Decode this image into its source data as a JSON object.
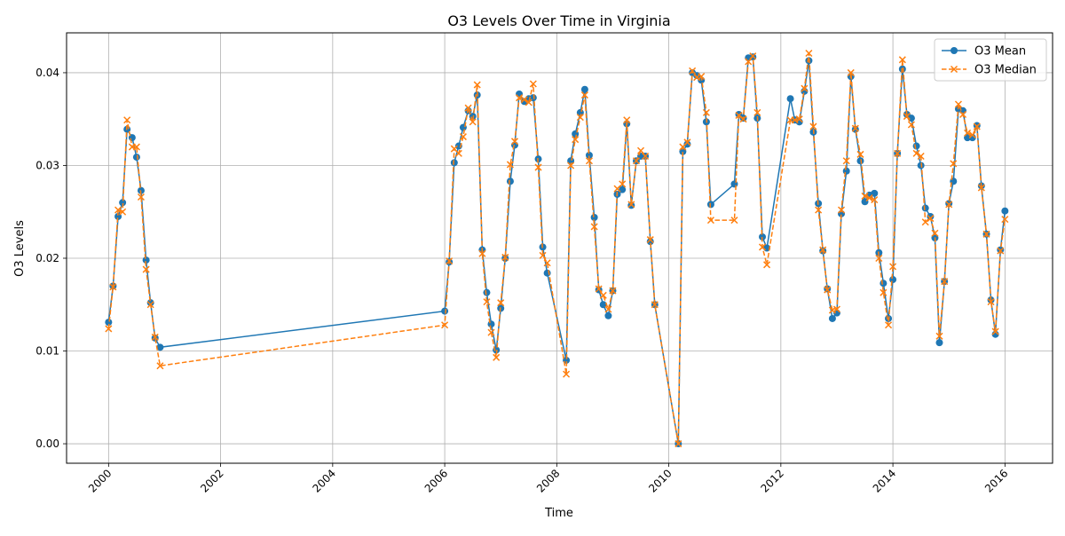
{
  "chart_data": {
    "type": "line",
    "title": "O3 Levels Over Time in Virginia",
    "xlabel": "Time",
    "ylabel": "O3 Levels",
    "xlim": [
      1999.25,
      2016.85
    ],
    "ylim": [
      -0.0021,
      0.0443
    ],
    "x_ticks": [
      2000,
      2002,
      2004,
      2006,
      2008,
      2010,
      2012,
      2014,
      2016
    ],
    "x_tick_labels": [
      "2000",
      "2002",
      "2004",
      "2006",
      "2008",
      "2010",
      "2012",
      "2014",
      "2016"
    ],
    "y_ticks": [
      0.0,
      0.01,
      0.02,
      0.03,
      0.04
    ],
    "y_tick_labels": [
      "0.00",
      "0.01",
      "0.02",
      "0.03",
      "0.04"
    ],
    "grid": true,
    "legend_position": "top-right",
    "series": [
      {
        "name": "O3 Mean",
        "color": "#1f77b4",
        "line_style": "solid",
        "marker": "circle",
        "points": [
          [
            2000.0,
            0.0131
          ],
          [
            2000.08,
            0.017
          ],
          [
            2000.17,
            0.0245
          ],
          [
            2000.25,
            0.026
          ],
          [
            2000.33,
            0.0339
          ],
          [
            2000.42,
            0.033
          ],
          [
            2000.5,
            0.0309
          ],
          [
            2000.58,
            0.0273
          ],
          [
            2000.67,
            0.0198
          ],
          [
            2000.75,
            0.0152
          ],
          [
            2000.83,
            0.0114
          ],
          [
            2000.92,
            0.0104
          ],
          [
            2006.0,
            0.0143
          ],
          [
            2006.08,
            0.0196
          ],
          [
            2006.17,
            0.0303
          ],
          [
            2006.25,
            0.0321
          ],
          [
            2006.33,
            0.0341
          ],
          [
            2006.42,
            0.0359
          ],
          [
            2006.5,
            0.0353
          ],
          [
            2006.58,
            0.0376
          ],
          [
            2006.67,
            0.0209
          ],
          [
            2006.75,
            0.0163
          ],
          [
            2006.83,
            0.0129
          ],
          [
            2006.92,
            0.0101
          ],
          [
            2007.0,
            0.0146
          ],
          [
            2007.08,
            0.02
          ],
          [
            2007.17,
            0.0283
          ],
          [
            2007.25,
            0.0322
          ],
          [
            2007.33,
            0.0377
          ],
          [
            2007.42,
            0.0369
          ],
          [
            2007.5,
            0.0372
          ],
          [
            2007.58,
            0.0373
          ],
          [
            2007.67,
            0.0307
          ],
          [
            2007.75,
            0.0212
          ],
          [
            2007.83,
            0.0184
          ],
          [
            2008.17,
            0.009
          ],
          [
            2008.25,
            0.0305
          ],
          [
            2008.33,
            0.0334
          ],
          [
            2008.42,
            0.0357
          ],
          [
            2008.5,
            0.0382
          ],
          [
            2008.58,
            0.0311
          ],
          [
            2008.67,
            0.0244
          ],
          [
            2008.75,
            0.0166
          ],
          [
            2008.83,
            0.015
          ],
          [
            2008.92,
            0.0138
          ],
          [
            2009.0,
            0.0165
          ],
          [
            2009.08,
            0.0269
          ],
          [
            2009.17,
            0.0274
          ],
          [
            2009.25,
            0.0345
          ],
          [
            2009.33,
            0.0257
          ],
          [
            2009.42,
            0.0305
          ],
          [
            2009.5,
            0.031
          ],
          [
            2009.58,
            0.031
          ],
          [
            2009.67,
            0.0218
          ],
          [
            2009.75,
            0.015
          ],
          [
            2010.17,
            0.0
          ],
          [
            2010.25,
            0.0315
          ],
          [
            2010.33,
            0.0323
          ],
          [
            2010.42,
            0.04
          ],
          [
            2010.5,
            0.0397
          ],
          [
            2010.58,
            0.0392
          ],
          [
            2010.67,
            0.0347
          ],
          [
            2010.75,
            0.0258
          ],
          [
            2011.17,
            0.028
          ],
          [
            2011.25,
            0.0355
          ],
          [
            2011.33,
            0.0351
          ],
          [
            2011.42,
            0.0416
          ],
          [
            2011.5,
            0.0417
          ],
          [
            2011.58,
            0.0351
          ],
          [
            2011.67,
            0.0223
          ],
          [
            2011.75,
            0.0211
          ],
          [
            2012.17,
            0.0372
          ],
          [
            2012.25,
            0.0349
          ],
          [
            2012.33,
            0.0347
          ],
          [
            2012.42,
            0.038
          ],
          [
            2012.5,
            0.0413
          ],
          [
            2012.58,
            0.0336
          ],
          [
            2012.67,
            0.0259
          ],
          [
            2012.75,
            0.0208
          ],
          [
            2012.83,
            0.0167
          ],
          [
            2012.92,
            0.0135
          ],
          [
            2013.0,
            0.0141
          ],
          [
            2013.08,
            0.0248
          ],
          [
            2013.17,
            0.0294
          ],
          [
            2013.25,
            0.0396
          ],
          [
            2013.33,
            0.0339
          ],
          [
            2013.42,
            0.0305
          ],
          [
            2013.5,
            0.0261
          ],
          [
            2013.58,
            0.0268
          ],
          [
            2013.67,
            0.027
          ],
          [
            2013.75,
            0.0206
          ],
          [
            2013.83,
            0.0173
          ],
          [
            2013.92,
            0.0135
          ],
          [
            2014.0,
            0.0177
          ],
          [
            2014.08,
            0.0313
          ],
          [
            2014.17,
            0.0404
          ],
          [
            2014.25,
            0.0355
          ],
          [
            2014.33,
            0.0351
          ],
          [
            2014.42,
            0.0321
          ],
          [
            2014.5,
            0.03
          ],
          [
            2014.58,
            0.0254
          ],
          [
            2014.67,
            0.0245
          ],
          [
            2014.75,
            0.0222
          ],
          [
            2014.83,
            0.0109
          ],
          [
            2014.92,
            0.0175
          ],
          [
            2015.0,
            0.0259
          ],
          [
            2015.08,
            0.0283
          ],
          [
            2015.17,
            0.0361
          ],
          [
            2015.25,
            0.0359
          ],
          [
            2015.33,
            0.033
          ],
          [
            2015.42,
            0.033
          ],
          [
            2015.5,
            0.0343
          ],
          [
            2015.58,
            0.0278
          ],
          [
            2015.67,
            0.0226
          ],
          [
            2015.75,
            0.0155
          ],
          [
            2015.83,
            0.0118
          ],
          [
            2015.92,
            0.0209
          ],
          [
            2016.0,
            0.0251
          ]
        ]
      },
      {
        "name": "O3 Median",
        "color": "#ff7f0e",
        "line_style": "dashed",
        "marker": "x",
        "points": [
          [
            2000.0,
            0.0124
          ],
          [
            2000.08,
            0.0169
          ],
          [
            2000.17,
            0.0252
          ],
          [
            2000.25,
            0.025
          ],
          [
            2000.33,
            0.0349
          ],
          [
            2000.42,
            0.032
          ],
          [
            2000.5,
            0.032
          ],
          [
            2000.58,
            0.0266
          ],
          [
            2000.67,
            0.0188
          ],
          [
            2000.75,
            0.015
          ],
          [
            2000.83,
            0.0115
          ],
          [
            2000.92,
            0.0084
          ],
          [
            2006.0,
            0.0128
          ],
          [
            2006.08,
            0.0197
          ],
          [
            2006.17,
            0.0318
          ],
          [
            2006.25,
            0.0313
          ],
          [
            2006.33,
            0.0331
          ],
          [
            2006.42,
            0.0362
          ],
          [
            2006.5,
            0.0347
          ],
          [
            2006.58,
            0.0387
          ],
          [
            2006.67,
            0.0205
          ],
          [
            2006.75,
            0.0153
          ],
          [
            2006.83,
            0.012
          ],
          [
            2006.92,
            0.0093
          ],
          [
            2007.0,
            0.0152
          ],
          [
            2007.08,
            0.0201
          ],
          [
            2007.17,
            0.0301
          ],
          [
            2007.25,
            0.0326
          ],
          [
            2007.33,
            0.0373
          ],
          [
            2007.42,
            0.0371
          ],
          [
            2007.5,
            0.0368
          ],
          [
            2007.58,
            0.0388
          ],
          [
            2007.67,
            0.0298
          ],
          [
            2007.75,
            0.0203
          ],
          [
            2007.83,
            0.0195
          ],
          [
            2008.17,
            0.0075
          ],
          [
            2008.25,
            0.03
          ],
          [
            2008.33,
            0.0328
          ],
          [
            2008.42,
            0.0352
          ],
          [
            2008.5,
            0.0376
          ],
          [
            2008.58,
            0.0305
          ],
          [
            2008.67,
            0.0234
          ],
          [
            2008.75,
            0.0167
          ],
          [
            2008.83,
            0.016
          ],
          [
            2008.92,
            0.0145
          ],
          [
            2009.0,
            0.0165
          ],
          [
            2009.08,
            0.0275
          ],
          [
            2009.17,
            0.028
          ],
          [
            2009.25,
            0.0349
          ],
          [
            2009.33,
            0.0258
          ],
          [
            2009.42,
            0.0305
          ],
          [
            2009.5,
            0.0316
          ],
          [
            2009.58,
            0.031
          ],
          [
            2009.67,
            0.022
          ],
          [
            2009.75,
            0.015
          ],
          [
            2010.17,
            0.0
          ],
          [
            2010.25,
            0.032
          ],
          [
            2010.33,
            0.0325
          ],
          [
            2010.42,
            0.0402
          ],
          [
            2010.5,
            0.0395
          ],
          [
            2010.58,
            0.0396
          ],
          [
            2010.67,
            0.0357
          ],
          [
            2010.75,
            0.0241
          ],
          [
            2011.17,
            0.0241
          ],
          [
            2011.25,
            0.0354
          ],
          [
            2011.33,
            0.035
          ],
          [
            2011.42,
            0.0412
          ],
          [
            2011.5,
            0.0418
          ],
          [
            2011.58,
            0.0357
          ],
          [
            2011.67,
            0.0212
          ],
          [
            2011.75,
            0.0193
          ],
          [
            2012.17,
            0.0349
          ],
          [
            2012.25,
            0.0349
          ],
          [
            2012.33,
            0.035
          ],
          [
            2012.42,
            0.0383
          ],
          [
            2012.5,
            0.0421
          ],
          [
            2012.58,
            0.0342
          ],
          [
            2012.67,
            0.0252
          ],
          [
            2012.75,
            0.0209
          ],
          [
            2012.83,
            0.0166
          ],
          [
            2012.92,
            0.0144
          ],
          [
            2013.0,
            0.0145
          ],
          [
            2013.08,
            0.0252
          ],
          [
            2013.17,
            0.0305
          ],
          [
            2013.25,
            0.04
          ],
          [
            2013.33,
            0.034
          ],
          [
            2013.42,
            0.0312
          ],
          [
            2013.5,
            0.0267
          ],
          [
            2013.58,
            0.0265
          ],
          [
            2013.67,
            0.0263
          ],
          [
            2013.75,
            0.02
          ],
          [
            2013.83,
            0.0163
          ],
          [
            2013.92,
            0.0128
          ],
          [
            2014.0,
            0.0191
          ],
          [
            2014.08,
            0.0313
          ],
          [
            2014.17,
            0.0414
          ],
          [
            2014.25,
            0.0353
          ],
          [
            2014.33,
            0.0344
          ],
          [
            2014.42,
            0.0313
          ],
          [
            2014.5,
            0.031
          ],
          [
            2014.58,
            0.0239
          ],
          [
            2014.67,
            0.0243
          ],
          [
            2014.75,
            0.0227
          ],
          [
            2014.83,
            0.0116
          ],
          [
            2014.92,
            0.0175
          ],
          [
            2015.0,
            0.0258
          ],
          [
            2015.08,
            0.0302
          ],
          [
            2015.17,
            0.0366
          ],
          [
            2015.25,
            0.0355
          ],
          [
            2015.33,
            0.0335
          ],
          [
            2015.42,
            0.0333
          ],
          [
            2015.5,
            0.0342
          ],
          [
            2015.58,
            0.0276
          ],
          [
            2015.67,
            0.0226
          ],
          [
            2015.75,
            0.0153
          ],
          [
            2015.83,
            0.0121
          ],
          [
            2015.92,
            0.0208
          ],
          [
            2016.0,
            0.0242
          ]
        ]
      }
    ]
  }
}
